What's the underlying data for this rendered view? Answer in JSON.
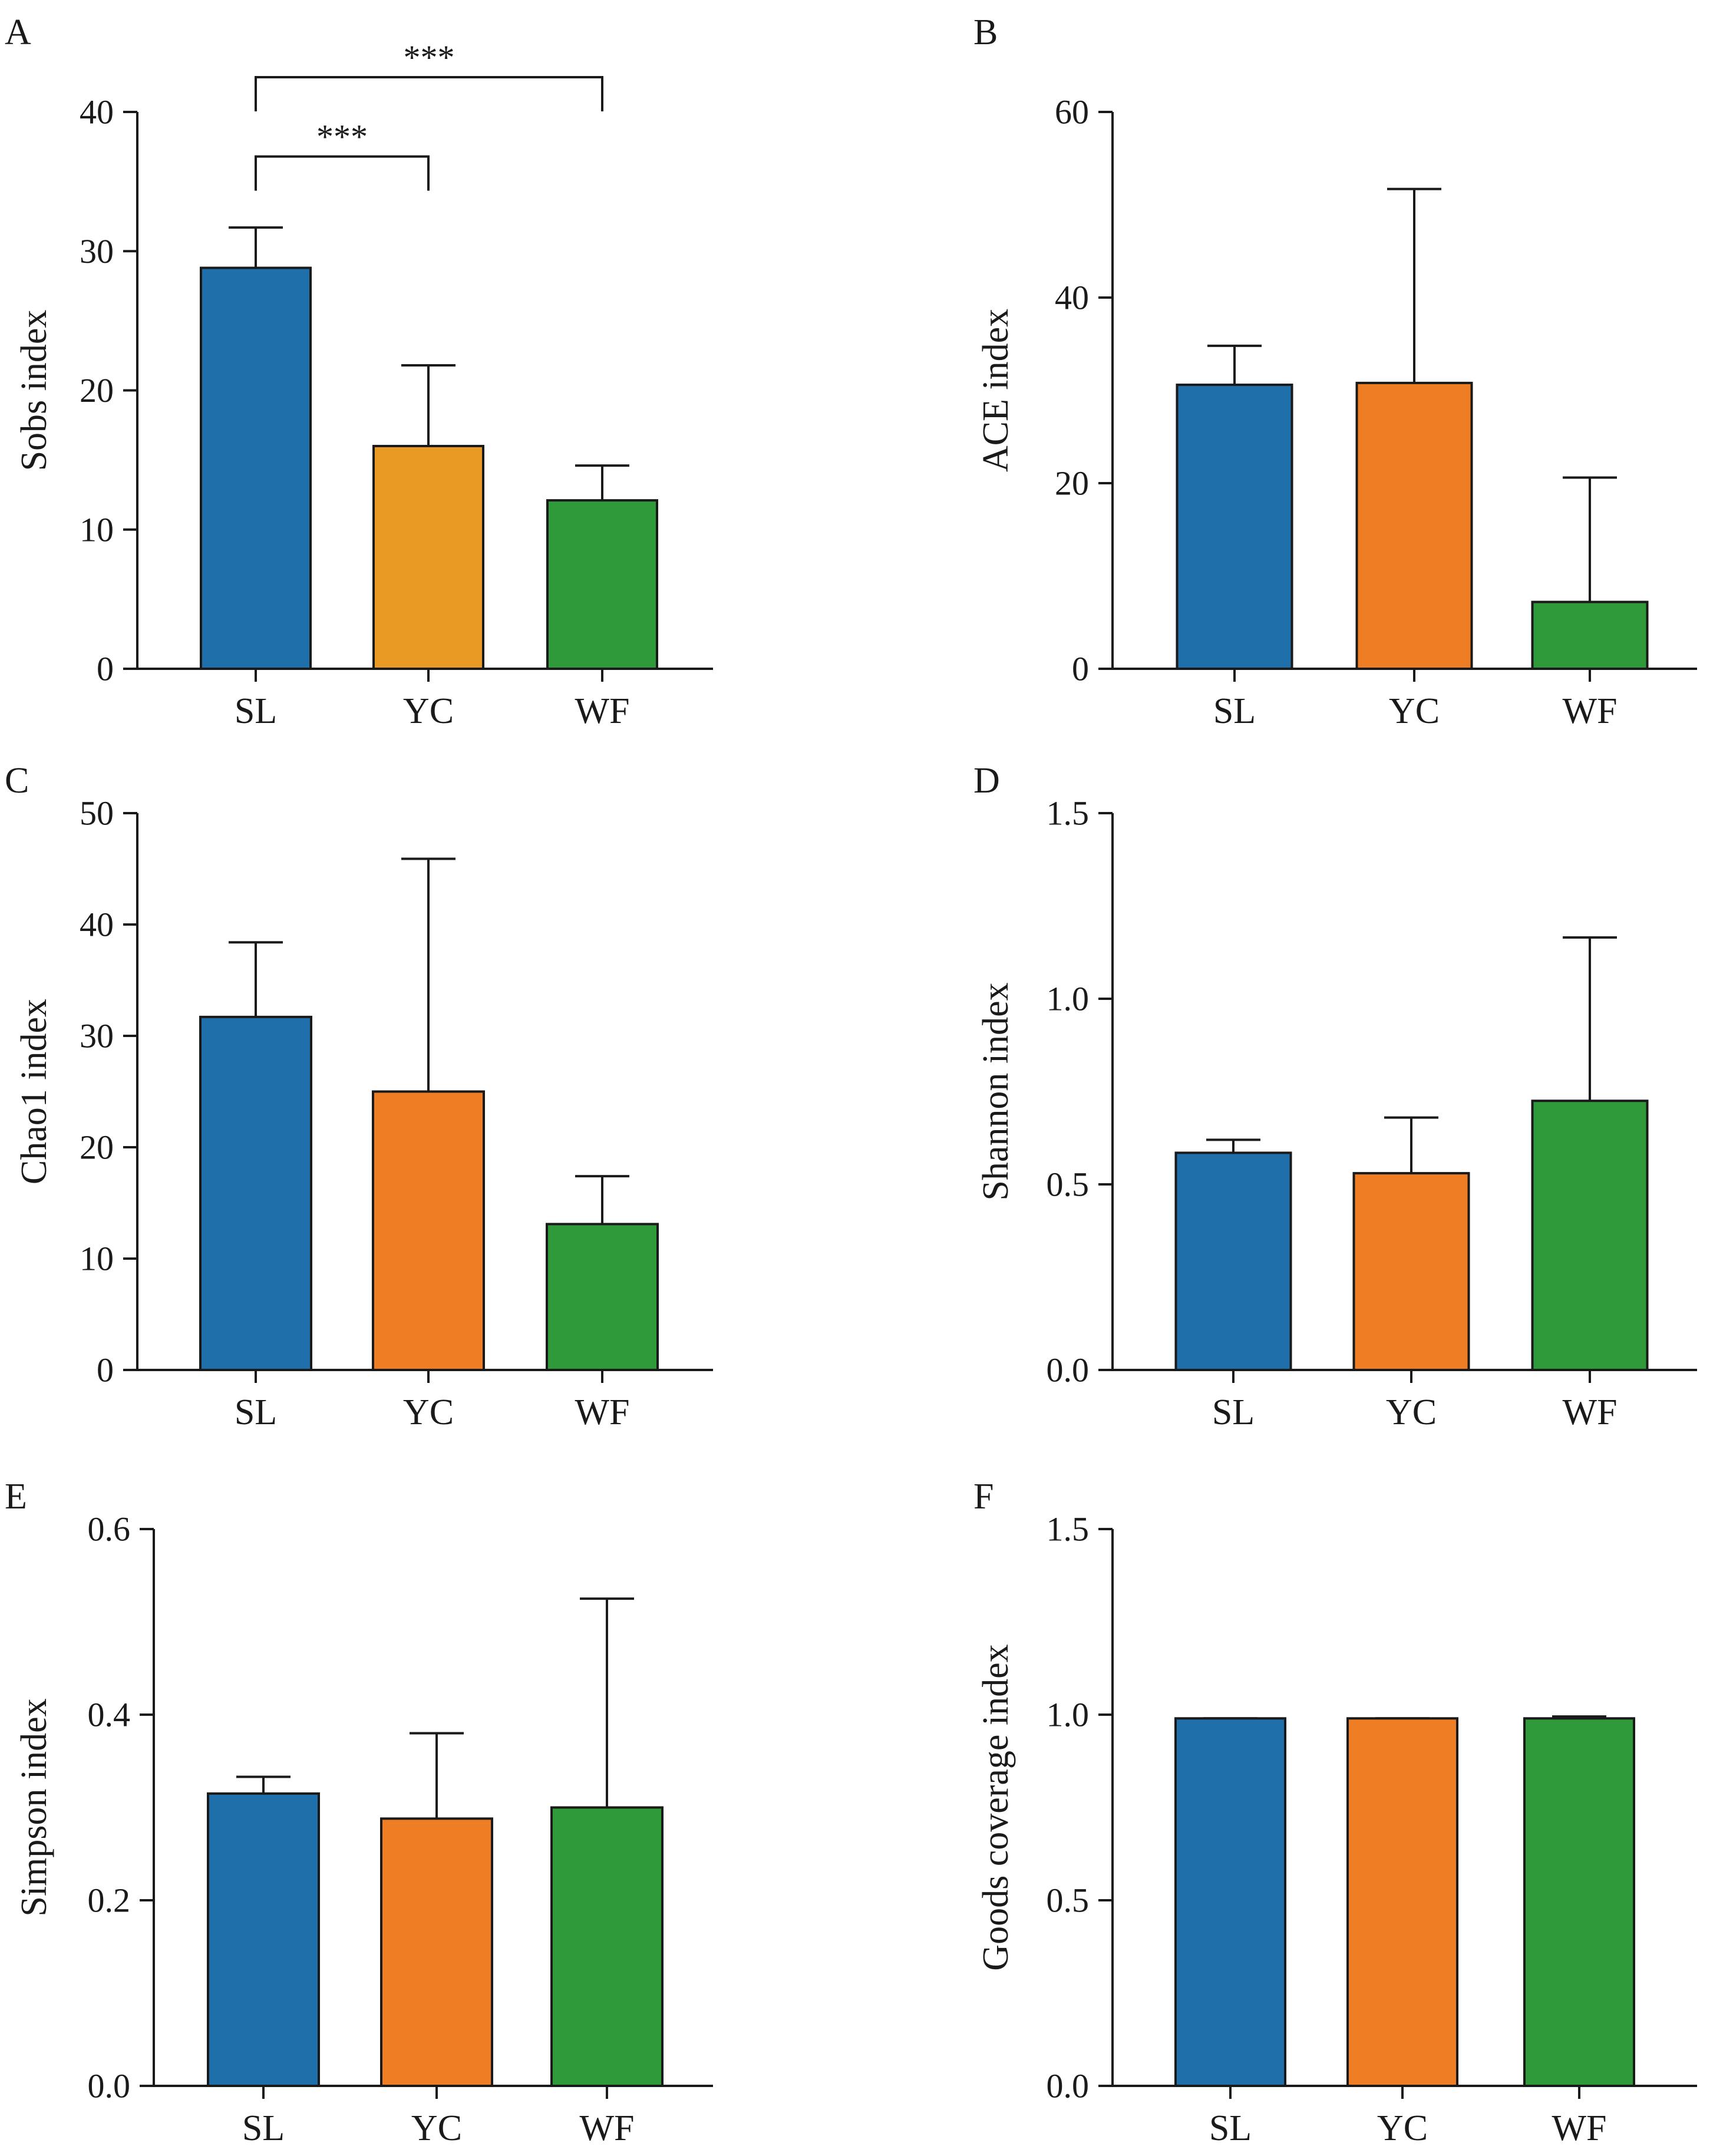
{
  "chart_data": [
    {
      "panel_label": "A",
      "type": "bar",
      "ylabel": "Sobs index",
      "xlabel": "",
      "ylim": [
        0,
        40
      ],
      "yticks": [
        0,
        10,
        20,
        30,
        40
      ],
      "ytick_labels": [
        "0",
        "10",
        "20",
        "30",
        "40"
      ],
      "categories": [
        "SL",
        "YC",
        "WF"
      ],
      "values": [
        28.8,
        16.0,
        12.1
      ],
      "errors": [
        2.9,
        5.8,
        2.5
      ],
      "colors": [
        "#1f6faa",
        "#e99a24",
        "#2e9a3a"
      ],
      "significance": [
        {
          "from": 0,
          "to": 1,
          "label": "***",
          "y": 36.8
        },
        {
          "from": 0,
          "to": 2,
          "label": "***",
          "y": 42.5
        }
      ]
    },
    {
      "panel_label": "B",
      "type": "bar",
      "ylabel": "ACE index",
      "xlabel": "",
      "ylim": [
        0,
        60
      ],
      "yticks": [
        0,
        20,
        40,
        60
      ],
      "ytick_labels": [
        "0",
        "20",
        "40",
        "60"
      ],
      "categories": [
        "SL",
        "YC",
        "WF"
      ],
      "values": [
        30.6,
        30.8,
        7.2
      ],
      "errors": [
        4.2,
        20.9,
        13.4
      ],
      "colors": [
        "#1f6faa",
        "#ee7d23",
        "#2e9a3a"
      ],
      "significance": []
    },
    {
      "panel_label": "C",
      "type": "bar",
      "ylabel": "Chao1 index",
      "xlabel": "",
      "ylim": [
        0,
        50
      ],
      "yticks": [
        0,
        10,
        20,
        30,
        40,
        50
      ],
      "ytick_labels": [
        "0",
        "10",
        "20",
        "30",
        "40",
        "50"
      ],
      "categories": [
        "SL",
        "YC",
        "WF"
      ],
      "values": [
        31.7,
        25.0,
        13.1
      ],
      "errors": [
        6.7,
        20.9,
        4.3
      ],
      "colors": [
        "#1f6faa",
        "#ee7d23",
        "#2e9a3a"
      ],
      "significance": []
    },
    {
      "panel_label": "D",
      "type": "bar",
      "ylabel": "Shannon index",
      "xlabel": "",
      "ylim": [
        0,
        1.5
      ],
      "yticks": [
        0,
        0.5,
        1.0,
        1.5
      ],
      "ytick_labels": [
        "0.0",
        "0.5",
        "1.0",
        "1.5"
      ],
      "categories": [
        "SL",
        "YC",
        "WF"
      ],
      "values": [
        0.585,
        0.53,
        0.725
      ],
      "errors": [
        0.035,
        0.15,
        0.44
      ],
      "colors": [
        "#1f6faa",
        "#ee7d23",
        "#2e9a3a"
      ],
      "significance": []
    },
    {
      "panel_label": "E",
      "type": "bar",
      "ylabel": "Simpson index",
      "xlabel": "",
      "ylim": [
        0,
        0.6
      ],
      "yticks": [
        0,
        0.2,
        0.4,
        0.6
      ],
      "ytick_labels": [
        "0.0",
        "0.2",
        "0.4",
        "0.6"
      ],
      "categories": [
        "SL",
        "YC",
        "WF"
      ],
      "values": [
        0.315,
        0.288,
        0.3
      ],
      "errors": [
        0.018,
        0.092,
        0.225
      ],
      "colors": [
        "#1f6faa",
        "#ee7d23",
        "#2e9a3a"
      ],
      "significance": []
    },
    {
      "panel_label": "F",
      "type": "bar",
      "ylabel": "Goods coverage index",
      "xlabel": "",
      "ylim": [
        0,
        1.5
      ],
      "yticks": [
        0,
        0.5,
        1.0,
        1.5
      ],
      "ytick_labels": [
        "0.0",
        "0.5",
        "1.0",
        "1.5"
      ],
      "categories": [
        "SL",
        "YC",
        "WF"
      ],
      "values": [
        0.99,
        0.99,
        0.99
      ],
      "errors": [
        0.0,
        0.0,
        0.005
      ],
      "colors": [
        "#1f6faa",
        "#ee7d23",
        "#2e9a3a"
      ],
      "significance": []
    }
  ]
}
